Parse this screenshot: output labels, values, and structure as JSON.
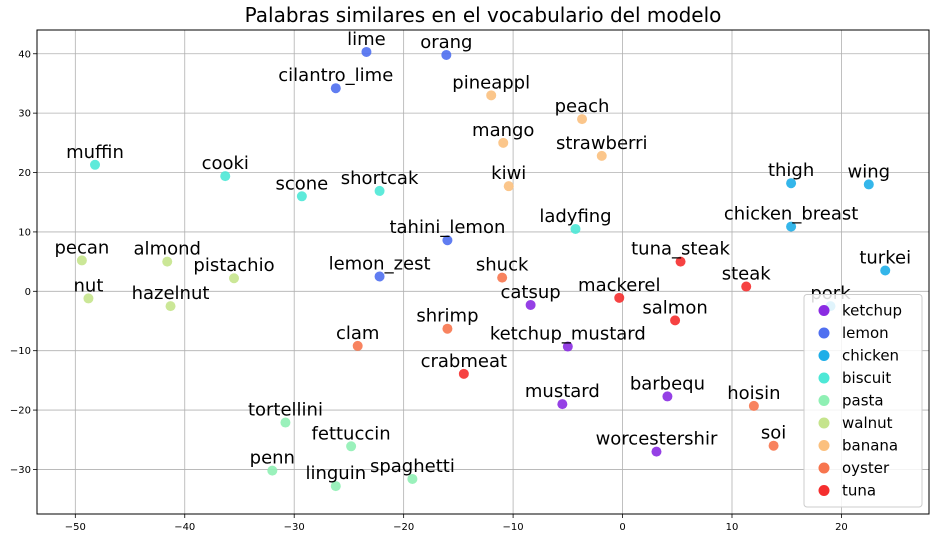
{
  "chart_data": {
    "type": "scatter",
    "title": "Palabras similares en el vocabulario del modelo",
    "xlabel": "",
    "ylabel": "",
    "xlim": [
      -53.5,
      28
    ],
    "ylim": [
      -37.5,
      44
    ],
    "xticks": [
      -50,
      -40,
      -30,
      -20,
      -10,
      0,
      10,
      20
    ],
    "yticks": [
      -30,
      -20,
      -10,
      0,
      10,
      20,
      30,
      40
    ],
    "grid": true,
    "legend_position": "lower-right",
    "series": [
      {
        "name": "ketchup",
        "color": "#8a2be2",
        "points": [
          {
            "label": "catsup",
            "x": -8.4,
            "y": -2.3
          },
          {
            "label": "ketchup_mustard",
            "x": -5.0,
            "y": -9.3
          },
          {
            "label": "mustard",
            "x": -5.5,
            "y": -19.0
          },
          {
            "label": "barbequ",
            "x": 4.1,
            "y": -17.7
          },
          {
            "label": "worcestershir",
            "x": 3.1,
            "y": -27.0
          }
        ]
      },
      {
        "name": "lemon",
        "color": "#4f6ff0",
        "points": [
          {
            "label": "lime",
            "x": -23.4,
            "y": 40.3
          },
          {
            "label": "orang",
            "x": -16.1,
            "y": 39.8
          },
          {
            "label": "cilantro_lime",
            "x": -26.2,
            "y": 34.2
          },
          {
            "label": "tahini_lemon",
            "x": -16.0,
            "y": 8.6
          },
          {
            "label": "lemon_zest",
            "x": -22.2,
            "y": 2.5
          }
        ]
      },
      {
        "name": "chicken",
        "color": "#1eaee8",
        "points": [
          {
            "label": "thigh",
            "x": 15.4,
            "y": 18.2
          },
          {
            "label": "wing",
            "x": 22.5,
            "y": 18.0
          },
          {
            "label": "chicken_breast",
            "x": 15.4,
            "y": 10.9
          },
          {
            "label": "turkei",
            "x": 24.0,
            "y": 3.5
          },
          {
            "label": "pork",
            "x": 19.0,
            "y": -2.5
          }
        ]
      },
      {
        "name": "biscuit",
        "color": "#4de8d6",
        "points": [
          {
            "label": "muffin",
            "x": -48.2,
            "y": 21.3
          },
          {
            "label": "cooki",
            "x": -36.3,
            "y": 19.4
          },
          {
            "label": "scone",
            "x": -29.3,
            "y": 16.0
          },
          {
            "label": "shortcak",
            "x": -22.2,
            "y": 16.9
          },
          {
            "label": "ladyfing",
            "x": -4.3,
            "y": 10.5
          }
        ]
      },
      {
        "name": "pasta",
        "color": "#8ff0b4",
        "points": [
          {
            "label": "tortellini",
            "x": -30.8,
            "y": -22.1
          },
          {
            "label": "fettuccin",
            "x": -24.8,
            "y": -26.1
          },
          {
            "label": "penn",
            "x": -32.0,
            "y": -30.2
          },
          {
            "label": "linguin",
            "x": -26.2,
            "y": -32.8
          },
          {
            "label": "spaghetti",
            "x": -19.2,
            "y": -31.6
          }
        ]
      },
      {
        "name": "walnut",
        "color": "#c5e48c",
        "points": [
          {
            "label": "pecan",
            "x": -49.4,
            "y": 5.2
          },
          {
            "label": "almond",
            "x": -41.6,
            "y": 5.0
          },
          {
            "label": "pistachio",
            "x": -35.5,
            "y": 2.2
          },
          {
            "label": "nut",
            "x": -48.8,
            "y": -1.2
          },
          {
            "label": "hazelnut",
            "x": -41.3,
            "y": -2.5
          }
        ]
      },
      {
        "name": "banana",
        "color": "#fbc07e",
        "points": [
          {
            "label": "pineappl",
            "x": -12.0,
            "y": 33.0
          },
          {
            "label": "peach",
            "x": -3.7,
            "y": 29.0
          },
          {
            "label": "mango",
            "x": -10.9,
            "y": 25.0
          },
          {
            "label": "strawberri",
            "x": -1.9,
            "y": 22.8
          },
          {
            "label": "kiwi",
            "x": -10.4,
            "y": 17.7
          }
        ]
      },
      {
        "name": "oyster",
        "color": "#f7754e",
        "points": [
          {
            "label": "shuck",
            "x": -11.0,
            "y": 2.3
          },
          {
            "label": "shrimp",
            "x": -16.0,
            "y": -6.3
          },
          {
            "label": "clam",
            "x": -24.2,
            "y": -9.2
          },
          {
            "label": "hoisin",
            "x": 12.0,
            "y": -19.3
          },
          {
            "label": "soi",
            "x": 13.8,
            "y": -26.0
          }
        ]
      },
      {
        "name": "tuna",
        "color": "#f52e2e",
        "points": [
          {
            "label": "tuna_steak",
            "x": 5.3,
            "y": 5.0
          },
          {
            "label": "steak",
            "x": 11.3,
            "y": 0.8
          },
          {
            "label": "mackerel",
            "x": -0.3,
            "y": -1.1
          },
          {
            "label": "salmon",
            "x": 4.8,
            "y": -4.9
          },
          {
            "label": "crabmeat",
            "x": -14.5,
            "y": -13.9
          }
        ]
      }
    ]
  }
}
